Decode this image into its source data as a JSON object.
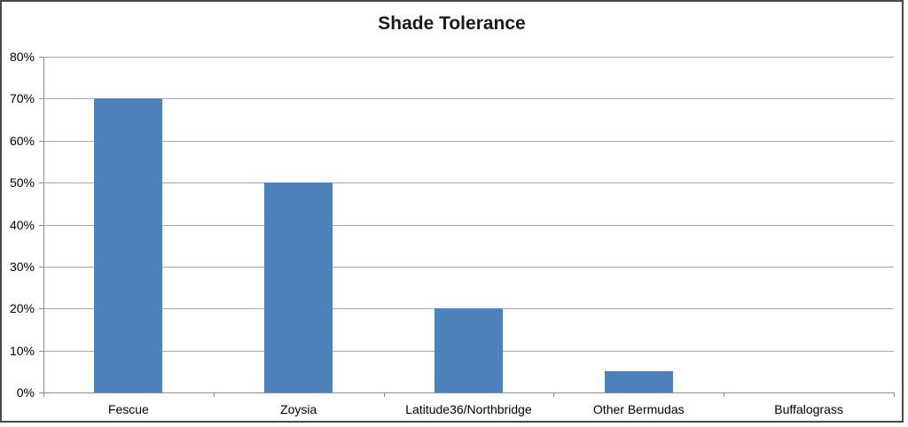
{
  "frame": {
    "background_color": "#ffffff",
    "border_color": "#4a4a4a"
  },
  "chart_data": {
    "type": "bar",
    "title": "Shade Tolerance",
    "categories": [
      "Fescue",
      "Zoysia",
      "Latitude36/Northbridge",
      "Other Bermudas",
      "Buffalograss"
    ],
    "values": [
      70,
      50,
      20,
      5,
      0
    ],
    "value_format": "percent",
    "xlabel": "",
    "ylabel": "",
    "ylim": [
      0,
      80
    ],
    "ytick_step": 10,
    "ytick_labels": [
      "0%",
      "10%",
      "20%",
      "30%",
      "40%",
      "50%",
      "60%",
      "70%",
      "80%"
    ],
    "grid": true,
    "legend": false,
    "bar_color": "#4f81bd",
    "gridline_color": "#a6a6a6",
    "axis_color": "#8c8c8c",
    "tick_color": "#8c8c8c",
    "title_color": "#1a1a1a",
    "label_color": "#000000"
  }
}
